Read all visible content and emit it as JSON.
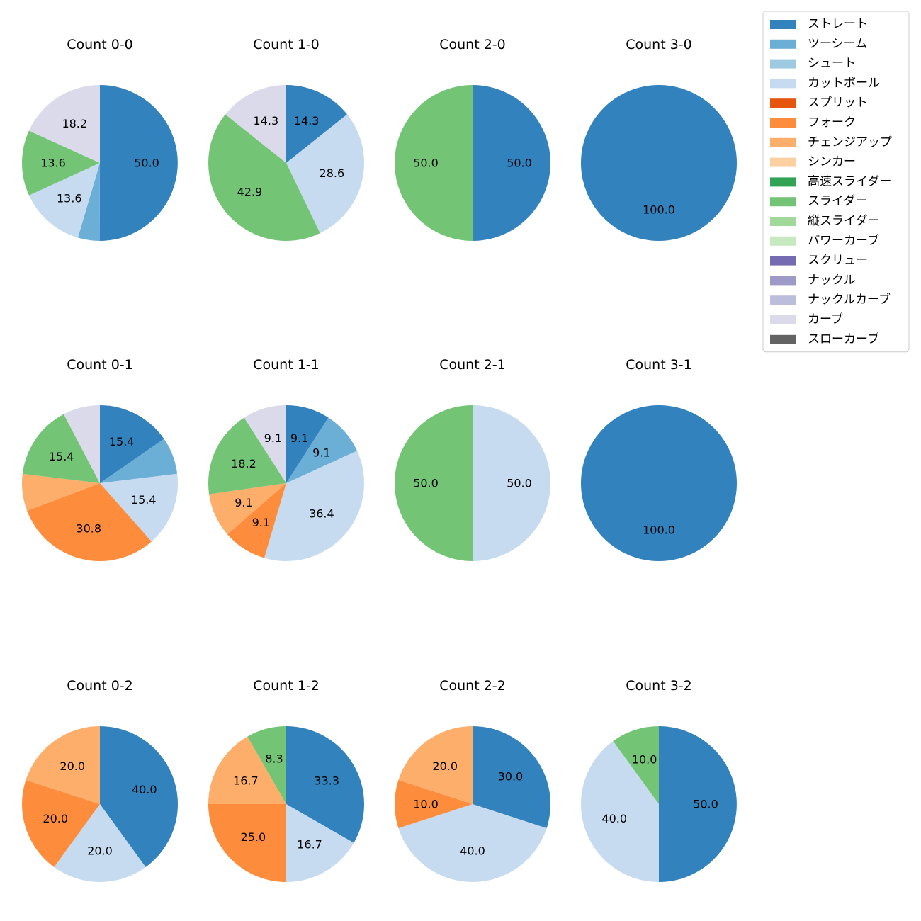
{
  "chart_data": {
    "type": "pie",
    "legend": {
      "placement": "top-right",
      "entries": [
        {
          "name": "ストレート",
          "color": "#3182bd"
        },
        {
          "name": "ツーシーム",
          "color": "#6baed6"
        },
        {
          "name": "シュート",
          "color": "#9ecae1"
        },
        {
          "name": "カットボール",
          "color": "#c6dbef"
        },
        {
          "name": "スプリット",
          "color": "#e6550d"
        },
        {
          "name": "フォーク",
          "color": "#fd8d3c"
        },
        {
          "name": "チェンジアップ",
          "color": "#fdae6b"
        },
        {
          "name": "シンカー",
          "color": "#fdd0a2"
        },
        {
          "name": "高速スライダー",
          "color": "#31a354"
        },
        {
          "name": "スライダー",
          "color": "#74c476"
        },
        {
          "name": "縦スライダー",
          "color": "#a1d99b"
        },
        {
          "name": "パワーカーブ",
          "color": "#c7e9c0"
        },
        {
          "name": "スクリュー",
          "color": "#756bb1"
        },
        {
          "name": "ナックル",
          "color": "#9e9ac8"
        },
        {
          "name": "ナックルカーブ",
          "color": "#bcbddc"
        },
        {
          "name": "カーブ",
          "color": "#dadaeb"
        },
        {
          "name": "スローカーブ",
          "color": "#636363"
        }
      ]
    },
    "pies": [
      {
        "title": "Count 0-0",
        "slices": [
          {
            "pitch": "ストレート",
            "value": 50.0,
            "label": "50.0"
          },
          {
            "pitch": "ツーシーム",
            "value": 4.5,
            "label": ""
          },
          {
            "pitch": "カットボール",
            "value": 13.6,
            "label": "13.6"
          },
          {
            "pitch": "スライダー",
            "value": 13.6,
            "label": "13.6"
          },
          {
            "pitch": "カーブ",
            "value": 18.2,
            "label": "18.2"
          }
        ]
      },
      {
        "title": "Count 1-0",
        "slices": [
          {
            "pitch": "ストレート",
            "value": 14.3,
            "label": "14.3"
          },
          {
            "pitch": "カットボール",
            "value": 28.6,
            "label": "28.6"
          },
          {
            "pitch": "スライダー",
            "value": 42.9,
            "label": "42.9"
          },
          {
            "pitch": "カーブ",
            "value": 14.3,
            "label": "14.3"
          }
        ]
      },
      {
        "title": "Count 2-0",
        "slices": [
          {
            "pitch": "ストレート",
            "value": 50.0,
            "label": "50.0"
          },
          {
            "pitch": "スライダー",
            "value": 50.0,
            "label": "50.0"
          }
        ]
      },
      {
        "title": "Count 3-0",
        "slices": [
          {
            "pitch": "ストレート",
            "value": 100.0,
            "label": "100.0"
          }
        ]
      },
      {
        "title": "Count 0-1",
        "slices": [
          {
            "pitch": "ストレート",
            "value": 15.4,
            "label": "15.4"
          },
          {
            "pitch": "ツーシーム",
            "value": 7.7,
            "label": ""
          },
          {
            "pitch": "カットボール",
            "value": 15.4,
            "label": "15.4"
          },
          {
            "pitch": "フォーク",
            "value": 30.8,
            "label": "30.8"
          },
          {
            "pitch": "チェンジアップ",
            "value": 7.7,
            "label": ""
          },
          {
            "pitch": "スライダー",
            "value": 15.4,
            "label": "15.4"
          },
          {
            "pitch": "カーブ",
            "value": 7.7,
            "label": ""
          }
        ]
      },
      {
        "title": "Count 1-1",
        "slices": [
          {
            "pitch": "ストレート",
            "value": 9.1,
            "label": "9.1"
          },
          {
            "pitch": "ツーシーム",
            "value": 9.1,
            "label": "9.1"
          },
          {
            "pitch": "カットボール",
            "value": 36.4,
            "label": "36.4"
          },
          {
            "pitch": "フォーク",
            "value": 9.1,
            "label": "9.1"
          },
          {
            "pitch": "チェンジアップ",
            "value": 9.1,
            "label": "9.1"
          },
          {
            "pitch": "スライダー",
            "value": 18.2,
            "label": "18.2"
          },
          {
            "pitch": "カーブ",
            "value": 9.1,
            "label": "9.1"
          }
        ]
      },
      {
        "title": "Count 2-1",
        "slices": [
          {
            "pitch": "カットボール",
            "value": 50.0,
            "label": "50.0"
          },
          {
            "pitch": "スライダー",
            "value": 50.0,
            "label": "50.0"
          }
        ]
      },
      {
        "title": "Count 3-1",
        "slices": [
          {
            "pitch": "ストレート",
            "value": 100.0,
            "label": "100.0"
          }
        ]
      },
      {
        "title": "Count 0-2",
        "slices": [
          {
            "pitch": "ストレート",
            "value": 40.0,
            "label": "40.0"
          },
          {
            "pitch": "カットボール",
            "value": 20.0,
            "label": "20.0"
          },
          {
            "pitch": "フォーク",
            "value": 20.0,
            "label": "20.0"
          },
          {
            "pitch": "チェンジアップ",
            "value": 20.0,
            "label": "20.0"
          }
        ]
      },
      {
        "title": "Count 1-2",
        "slices": [
          {
            "pitch": "ストレート",
            "value": 33.3,
            "label": "33.3"
          },
          {
            "pitch": "カットボール",
            "value": 16.7,
            "label": "16.7"
          },
          {
            "pitch": "フォーク",
            "value": 25.0,
            "label": "25.0"
          },
          {
            "pitch": "チェンジアップ",
            "value": 16.7,
            "label": "16.7"
          },
          {
            "pitch": "スライダー",
            "value": 8.3,
            "label": "8.3"
          }
        ]
      },
      {
        "title": "Count 2-2",
        "slices": [
          {
            "pitch": "ストレート",
            "value": 30.0,
            "label": "30.0"
          },
          {
            "pitch": "カットボール",
            "value": 40.0,
            "label": "40.0"
          },
          {
            "pitch": "フォーク",
            "value": 10.0,
            "label": "10.0"
          },
          {
            "pitch": "チェンジアップ",
            "value": 20.0,
            "label": "20.0"
          }
        ]
      },
      {
        "title": "Count 3-2",
        "slices": [
          {
            "pitch": "ストレート",
            "value": 50.0,
            "label": "50.0"
          },
          {
            "pitch": "カットボール",
            "value": 40.0,
            "label": "40.0"
          },
          {
            "pitch": "スライダー",
            "value": 10.0,
            "label": "10.0"
          }
        ]
      }
    ]
  }
}
